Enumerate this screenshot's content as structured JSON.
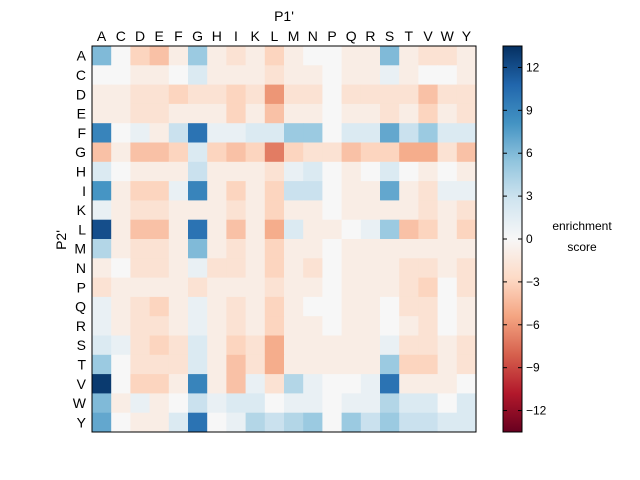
{
  "chart_data": {
    "type": "heatmap",
    "xlabel": "P1'",
    "ylabel": "P2'",
    "x_categories": [
      "A",
      "C",
      "D",
      "E",
      "F",
      "G",
      "H",
      "I",
      "K",
      "L",
      "M",
      "N",
      "P",
      "Q",
      "R",
      "S",
      "T",
      "V",
      "W",
      "Y"
    ],
    "y_categories": [
      "A",
      "C",
      "D",
      "E",
      "F",
      "G",
      "H",
      "I",
      "K",
      "L",
      "M",
      "N",
      "P",
      "Q",
      "R",
      "S",
      "T",
      "V",
      "W",
      "Y"
    ],
    "colorbar": {
      "label_line1": "enrichment",
      "label_line2": "score",
      "range": [
        -13.5,
        13.5
      ],
      "ticks": [
        "12",
        "9",
        "6",
        "3",
        "0",
        "−3",
        "−6",
        "−9",
        "−12"
      ],
      "tick_values": [
        12,
        9,
        6,
        3,
        0,
        -3,
        -6,
        -9,
        -12
      ],
      "colormap": "RdBu"
    },
    "values": [
      [
        6,
        0,
        -3,
        -4,
        -1,
        5,
        -1,
        -2,
        -1,
        -3,
        -1,
        0,
        0,
        -1,
        -1,
        6,
        -1,
        -2,
        -2,
        -1
      ],
      [
        0,
        0,
        -1,
        -1,
        0,
        2,
        -1,
        -1,
        -1,
        -2,
        -1,
        -1,
        0,
        -1,
        -1,
        1,
        -1,
        0,
        0,
        -1
      ],
      [
        -1,
        -1,
        -2,
        -2,
        -3,
        -2,
        -2,
        -3,
        -2,
        -6,
        -2,
        -2,
        0,
        -2,
        -2,
        -2,
        -2,
        -4,
        -2,
        -2
      ],
      [
        -1,
        -1,
        -2,
        -2,
        -1,
        -1,
        -1,
        -3,
        -1,
        -4,
        -1,
        -1,
        0,
        -1,
        -1,
        -2,
        -1,
        -3,
        -1,
        -2
      ],
      [
        9,
        0,
        1,
        -1,
        3,
        10,
        1,
        1,
        2,
        2,
        5,
        5,
        0,
        2,
        2,
        7,
        3,
        5,
        2,
        2
      ],
      [
        -4,
        -1,
        -4,
        -4,
        -3,
        2,
        -3,
        -4,
        -3,
        -7,
        -3,
        -2,
        -2,
        -4,
        -3,
        -3,
        -5,
        -5,
        -2,
        -4
      ],
      [
        2,
        0,
        -1,
        -1,
        -1,
        3,
        -1,
        -1,
        -1,
        -2,
        1,
        2,
        0,
        -1,
        0,
        2,
        0,
        -1,
        0,
        -1
      ],
      [
        8,
        -1,
        -3,
        -3,
        1,
        9,
        -1,
        -3,
        -1,
        -3,
        3,
        3,
        0,
        -1,
        -1,
        7,
        -1,
        -2,
        1,
        1
      ],
      [
        1,
        -1,
        -2,
        -2,
        -1,
        -1,
        -1,
        -2,
        -1,
        -3,
        -1,
        -1,
        0,
        -1,
        -1,
        -1,
        -1,
        -2,
        -1,
        -2
      ],
      [
        12,
        -1,
        -4,
        -4,
        -1,
        10,
        -1,
        -4,
        -1,
        -5,
        2,
        -1,
        -1,
        0,
        1,
        5,
        -4,
        -3,
        -1,
        -3
      ],
      [
        4,
        -1,
        -2,
        -2,
        -1,
        6,
        -1,
        -2,
        -1,
        -3,
        -1,
        -1,
        0,
        -1,
        -1,
        -1,
        -1,
        -1,
        -1,
        -1
      ],
      [
        -1,
        0,
        -2,
        -2,
        -1,
        1,
        -2,
        -2,
        -1,
        -3,
        -1,
        -2,
        0,
        -1,
        -1,
        -1,
        -2,
        -2,
        -1,
        -2
      ],
      [
        -2,
        -1,
        -1,
        -1,
        -1,
        -2,
        -1,
        -1,
        -1,
        -2,
        -1,
        -1,
        0,
        -1,
        -1,
        -1,
        -2,
        -3,
        0,
        -2
      ],
      [
        1,
        -1,
        -2,
        -3,
        -1,
        1,
        -1,
        -2,
        -1,
        -3,
        -1,
        0,
        0,
        -1,
        -1,
        0,
        -2,
        -2,
        0,
        -1
      ],
      [
        1,
        -1,
        -2,
        -2,
        -1,
        1,
        -1,
        -2,
        -1,
        -3,
        -1,
        -1,
        0,
        -1,
        -1,
        0,
        -1,
        -2,
        0,
        -1
      ],
      [
        2,
        1,
        -2,
        -3,
        -2,
        2,
        -1,
        -3,
        -2,
        -5,
        -1,
        -1,
        -1,
        -1,
        -1,
        1,
        -2,
        -2,
        -1,
        -2
      ],
      [
        5,
        0,
        -2,
        -2,
        -2,
        2,
        -1,
        -4,
        -2,
        -5,
        -1,
        -1,
        -1,
        -1,
        -1,
        5,
        -3,
        -3,
        -1,
        -2
      ],
      [
        13,
        0,
        -3,
        -3,
        -1,
        9,
        -1,
        -4,
        1,
        -2,
        4,
        1,
        0,
        0,
        1,
        10,
        -1,
        -1,
        -1,
        0
      ],
      [
        6,
        -1,
        1,
        -1,
        0,
        3,
        1,
        2,
        2,
        0,
        1,
        1,
        0,
        1,
        1,
        4,
        2,
        2,
        0,
        2
      ],
      [
        7,
        0,
        -1,
        -1,
        2,
        10,
        0,
        1,
        4,
        3,
        4,
        5,
        0,
        5,
        3,
        5,
        3,
        3,
        2,
        2
      ]
    ]
  }
}
